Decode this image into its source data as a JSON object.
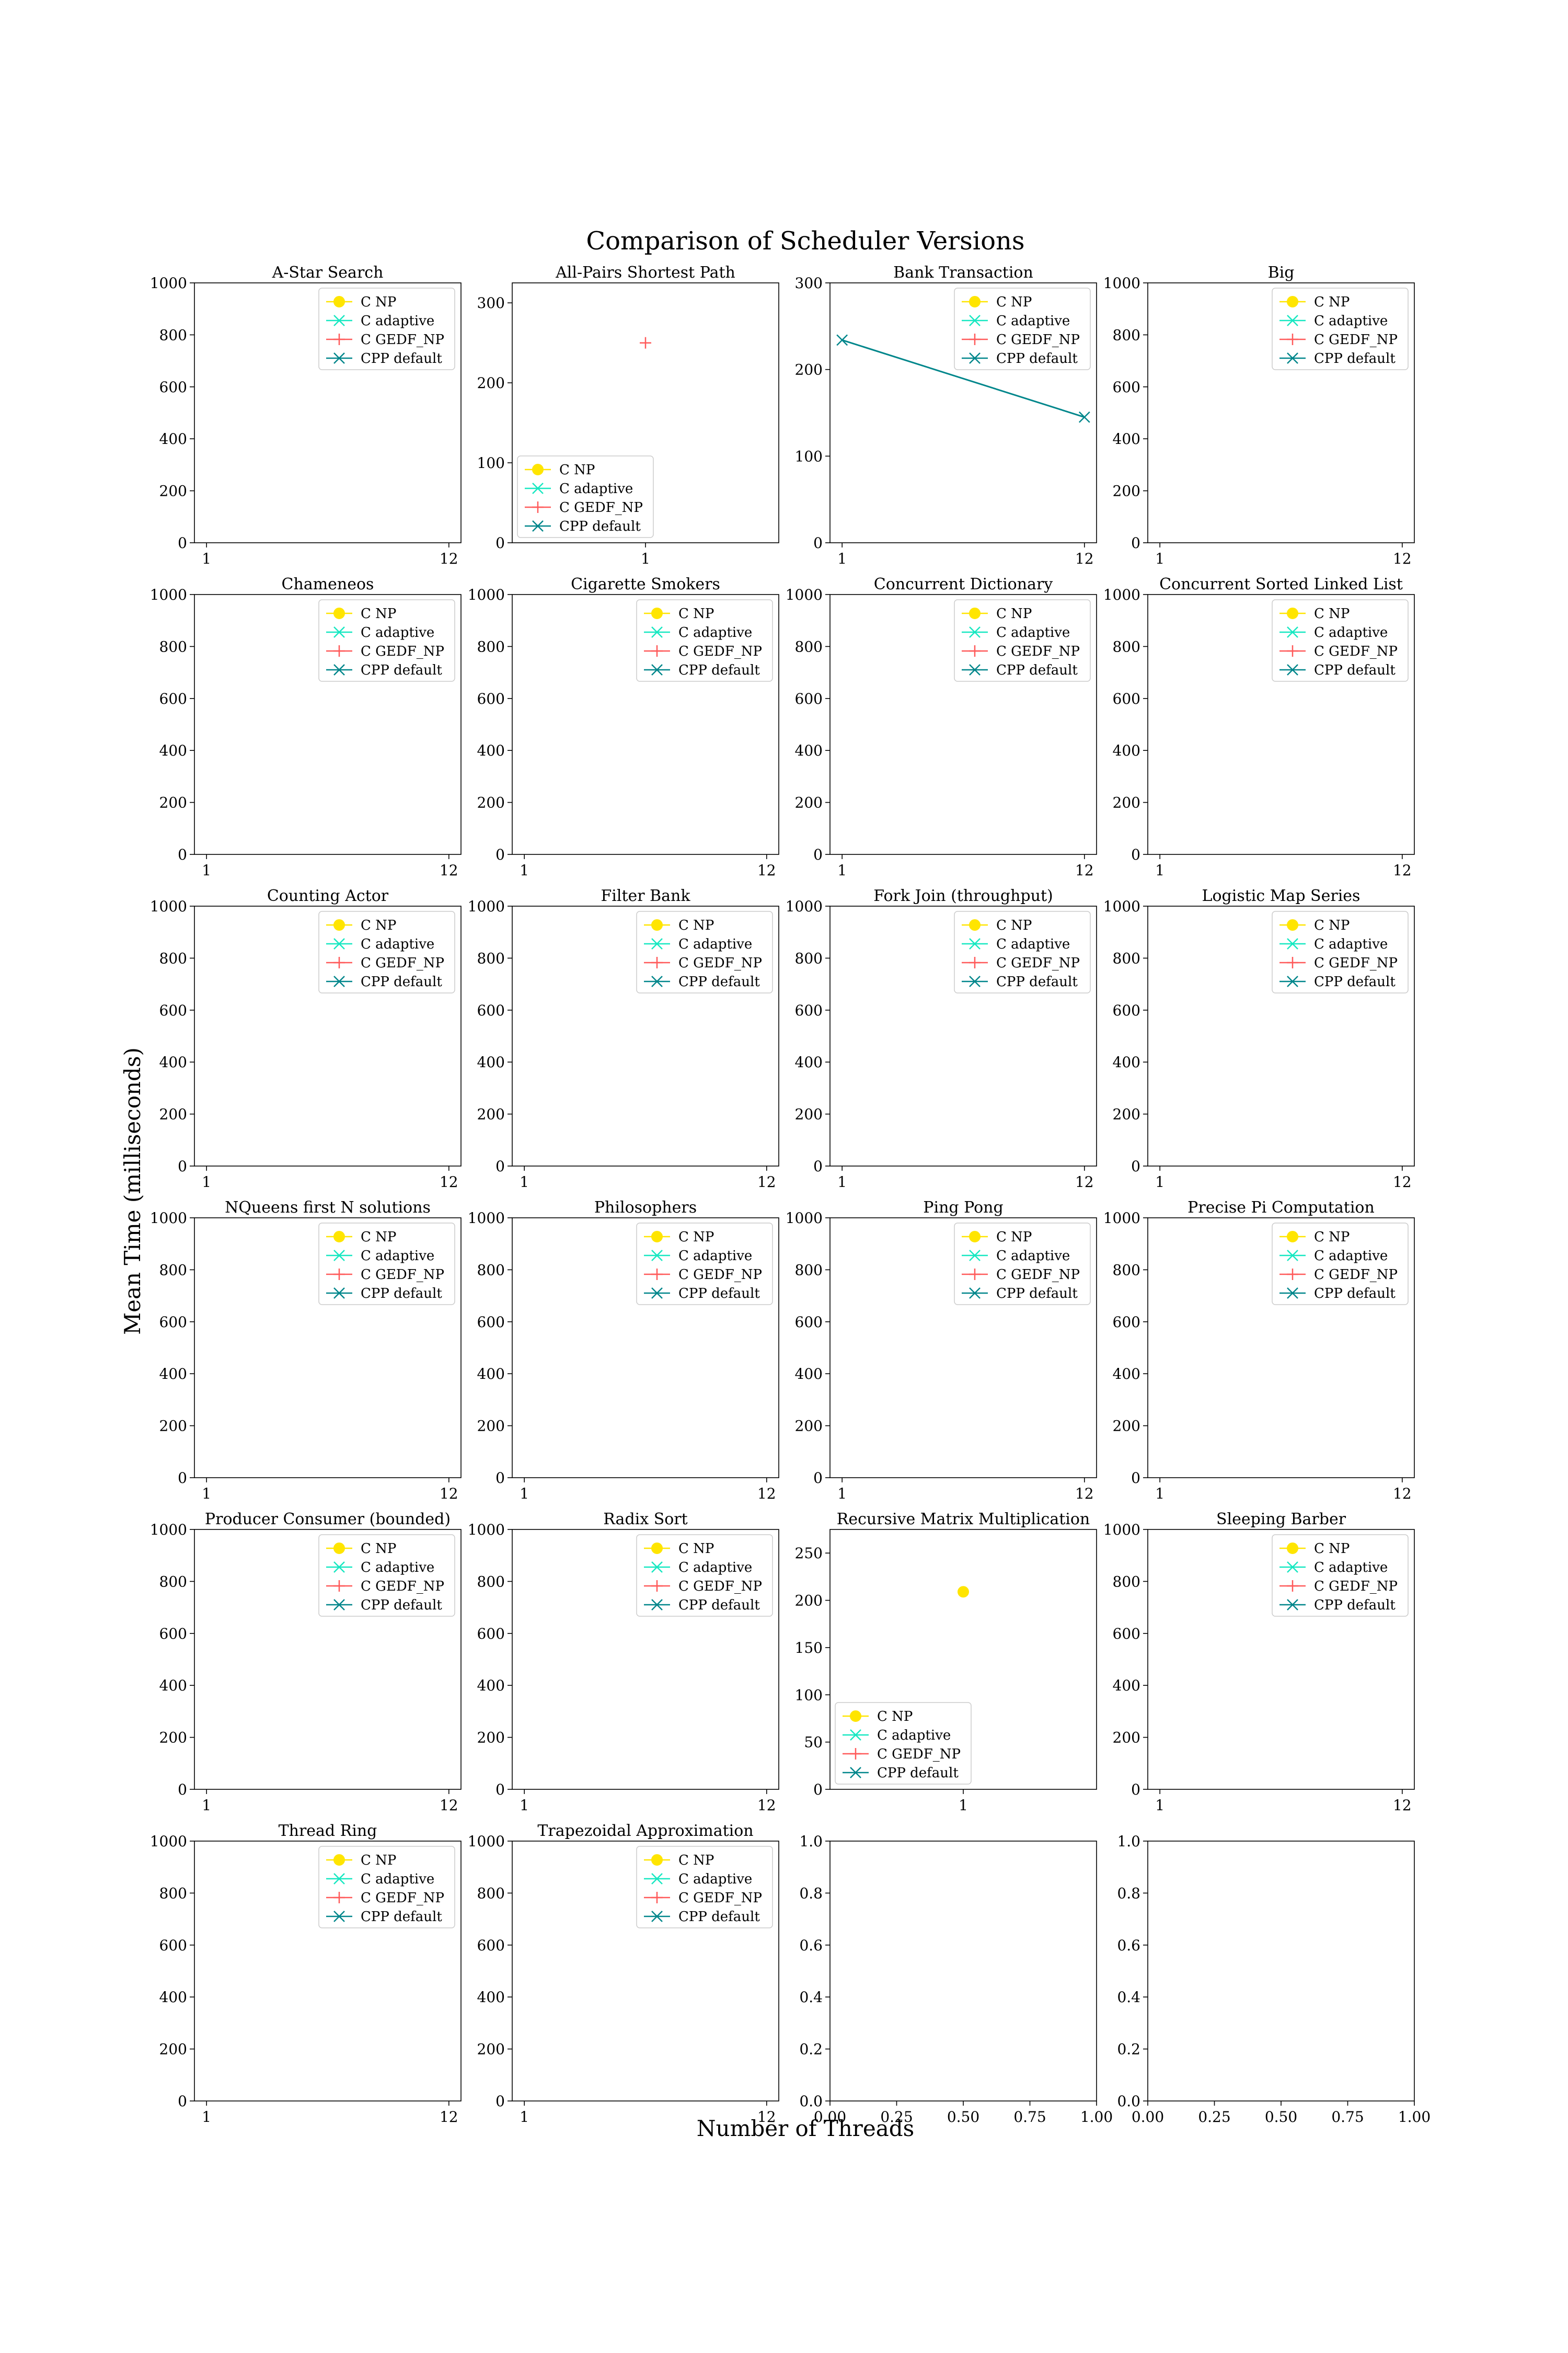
{
  "figure": {
    "title": "Comparison of Scheduler Versions",
    "xlabel": "Number of Threads",
    "ylabel": "Mean Time (milliseconds)"
  },
  "legend_labels": [
    "C NP",
    "C adaptive",
    "C GEDF_NP",
    "CPP default"
  ],
  "series_styles": [
    {
      "name": "C NP",
      "color": "#ffe500",
      "marker": "circle"
    },
    {
      "name": "C adaptive",
      "color": "#17e8c1",
      "marker": "x"
    },
    {
      "name": "C GEDF_NP",
      "color": "#ff5a5a",
      "marker": "plus"
    },
    {
      "name": "CPP default",
      "color": "#00868b",
      "marker": "x"
    }
  ],
  "chart_data": [
    {
      "type": "line",
      "title": "A-Star Search",
      "xticks": [
        "1",
        "12"
      ],
      "ylim": [
        0,
        1000
      ],
      "yticks": [
        0,
        200,
        400,
        600,
        800,
        1000
      ],
      "legend": "top-right",
      "series": [
        {
          "name": "C NP",
          "x": [],
          "y": []
        },
        {
          "name": "C adaptive",
          "x": [],
          "y": []
        },
        {
          "name": "C GEDF_NP",
          "x": [],
          "y": []
        },
        {
          "name": "CPP default",
          "x": [],
          "y": []
        }
      ]
    },
    {
      "type": "line",
      "title": "All-Pairs Shortest Path",
      "xticks": [
        "1"
      ],
      "ylim": [
        0,
        325
      ],
      "yticks": [
        0,
        100,
        200,
        300
      ],
      "legend": "bottom-left",
      "series": [
        {
          "name": "C NP",
          "x": [],
          "y": []
        },
        {
          "name": "C adaptive",
          "x": [],
          "y": []
        },
        {
          "name": "C GEDF_NP",
          "x": [
            1
          ],
          "y": [
            250
          ]
        },
        {
          "name": "CPP default",
          "x": [],
          "y": []
        }
      ]
    },
    {
      "type": "line",
      "title": "Bank Transaction",
      "xticks": [
        "1",
        "12"
      ],
      "ylim": [
        0,
        300
      ],
      "yticks": [
        0,
        100,
        200,
        300
      ],
      "legend": "top-right",
      "series": [
        {
          "name": "C NP",
          "x": [],
          "y": []
        },
        {
          "name": "C adaptive",
          "x": [],
          "y": []
        },
        {
          "name": "C GEDF_NP",
          "x": [],
          "y": []
        },
        {
          "name": "CPP default",
          "x": [
            1,
            12
          ],
          "y": [
            234,
            145
          ]
        }
      ]
    },
    {
      "type": "line",
      "title": "Big",
      "xticks": [
        "1",
        "12"
      ],
      "ylim": [
        0,
        1000
      ],
      "yticks": [
        0,
        200,
        400,
        600,
        800,
        1000
      ],
      "legend": "top-right",
      "series": [
        {
          "name": "C NP",
          "x": [],
          "y": []
        },
        {
          "name": "C adaptive",
          "x": [],
          "y": []
        },
        {
          "name": "C GEDF_NP",
          "x": [],
          "y": []
        },
        {
          "name": "CPP default",
          "x": [],
          "y": []
        }
      ]
    },
    {
      "type": "line",
      "title": "Chameneos",
      "xticks": [
        "1",
        "12"
      ],
      "ylim": [
        0,
        1000
      ],
      "yticks": [
        0,
        200,
        400,
        600,
        800,
        1000
      ],
      "legend": "top-right",
      "series": [
        {
          "name": "C NP",
          "x": [],
          "y": []
        },
        {
          "name": "C adaptive",
          "x": [],
          "y": []
        },
        {
          "name": "C GEDF_NP",
          "x": [],
          "y": []
        },
        {
          "name": "CPP default",
          "x": [],
          "y": []
        }
      ]
    },
    {
      "type": "line",
      "title": "Cigarette Smokers",
      "xticks": [
        "1",
        "12"
      ],
      "ylim": [
        0,
        1000
      ],
      "yticks": [
        0,
        200,
        400,
        600,
        800,
        1000
      ],
      "legend": "top-right",
      "series": [
        {
          "name": "C NP",
          "x": [],
          "y": []
        },
        {
          "name": "C adaptive",
          "x": [],
          "y": []
        },
        {
          "name": "C GEDF_NP",
          "x": [],
          "y": []
        },
        {
          "name": "CPP default",
          "x": [],
          "y": []
        }
      ]
    },
    {
      "type": "line",
      "title": "Concurrent Dictionary",
      "xticks": [
        "1",
        "12"
      ],
      "ylim": [
        0,
        1000
      ],
      "yticks": [
        0,
        200,
        400,
        600,
        800,
        1000
      ],
      "legend": "top-right",
      "series": [
        {
          "name": "C NP",
          "x": [],
          "y": []
        },
        {
          "name": "C adaptive",
          "x": [],
          "y": []
        },
        {
          "name": "C GEDF_NP",
          "x": [],
          "y": []
        },
        {
          "name": "CPP default",
          "x": [],
          "y": []
        }
      ]
    },
    {
      "type": "line",
      "title": "Concurrent Sorted Linked List",
      "xticks": [
        "1",
        "12"
      ],
      "ylim": [
        0,
        1000
      ],
      "yticks": [
        0,
        200,
        400,
        600,
        800,
        1000
      ],
      "legend": "top-right",
      "series": [
        {
          "name": "C NP",
          "x": [],
          "y": []
        },
        {
          "name": "C adaptive",
          "x": [],
          "y": []
        },
        {
          "name": "C GEDF_NP",
          "x": [],
          "y": []
        },
        {
          "name": "CPP default",
          "x": [],
          "y": []
        }
      ]
    },
    {
      "type": "line",
      "title": "Counting Actor",
      "xticks": [
        "1",
        "12"
      ],
      "ylim": [
        0,
        1000
      ],
      "yticks": [
        0,
        200,
        400,
        600,
        800,
        1000
      ],
      "legend": "top-right",
      "series": [
        {
          "name": "C NP",
          "x": [],
          "y": []
        },
        {
          "name": "C adaptive",
          "x": [],
          "y": []
        },
        {
          "name": "C GEDF_NP",
          "x": [],
          "y": []
        },
        {
          "name": "CPP default",
          "x": [],
          "y": []
        }
      ]
    },
    {
      "type": "line",
      "title": "Filter Bank",
      "xticks": [
        "1",
        "12"
      ],
      "ylim": [
        0,
        1000
      ],
      "yticks": [
        0,
        200,
        400,
        600,
        800,
        1000
      ],
      "legend": "top-right",
      "series": [
        {
          "name": "C NP",
          "x": [],
          "y": []
        },
        {
          "name": "C adaptive",
          "x": [],
          "y": []
        },
        {
          "name": "C GEDF_NP",
          "x": [],
          "y": []
        },
        {
          "name": "CPP default",
          "x": [],
          "y": []
        }
      ]
    },
    {
      "type": "line",
      "title": "Fork Join (throughput)",
      "xticks": [
        "1",
        "12"
      ],
      "ylim": [
        0,
        1000
      ],
      "yticks": [
        0,
        200,
        400,
        600,
        800,
        1000
      ],
      "legend": "top-right",
      "series": [
        {
          "name": "C NP",
          "x": [],
          "y": []
        },
        {
          "name": "C adaptive",
          "x": [],
          "y": []
        },
        {
          "name": "C GEDF_NP",
          "x": [],
          "y": []
        },
        {
          "name": "CPP default",
          "x": [],
          "y": []
        }
      ]
    },
    {
      "type": "line",
      "title": "Logistic Map Series",
      "xticks": [
        "1",
        "12"
      ],
      "ylim": [
        0,
        1000
      ],
      "yticks": [
        0,
        200,
        400,
        600,
        800,
        1000
      ],
      "legend": "top-right",
      "series": [
        {
          "name": "C NP",
          "x": [],
          "y": []
        },
        {
          "name": "C adaptive",
          "x": [],
          "y": []
        },
        {
          "name": "C GEDF_NP",
          "x": [],
          "y": []
        },
        {
          "name": "CPP default",
          "x": [],
          "y": []
        }
      ]
    },
    {
      "type": "line",
      "title": "NQueens first N solutions",
      "xticks": [
        "1",
        "12"
      ],
      "ylim": [
        0,
        1000
      ],
      "yticks": [
        0,
        200,
        400,
        600,
        800,
        1000
      ],
      "legend": "top-right",
      "series": [
        {
          "name": "C NP",
          "x": [],
          "y": []
        },
        {
          "name": "C adaptive",
          "x": [],
          "y": []
        },
        {
          "name": "C GEDF_NP",
          "x": [],
          "y": []
        },
        {
          "name": "CPP default",
          "x": [],
          "y": []
        }
      ]
    },
    {
      "type": "line",
      "title": "Philosophers",
      "xticks": [
        "1",
        "12"
      ],
      "ylim": [
        0,
        1000
      ],
      "yticks": [
        0,
        200,
        400,
        600,
        800,
        1000
      ],
      "legend": "top-right",
      "series": [
        {
          "name": "C NP",
          "x": [],
          "y": []
        },
        {
          "name": "C adaptive",
          "x": [],
          "y": []
        },
        {
          "name": "C GEDF_NP",
          "x": [],
          "y": []
        },
        {
          "name": "CPP default",
          "x": [],
          "y": []
        }
      ]
    },
    {
      "type": "line",
      "title": "Ping Pong",
      "xticks": [
        "1",
        "12"
      ],
      "ylim": [
        0,
        1000
      ],
      "yticks": [
        0,
        200,
        400,
        600,
        800,
        1000
      ],
      "legend": "top-right",
      "series": [
        {
          "name": "C NP",
          "x": [],
          "y": []
        },
        {
          "name": "C adaptive",
          "x": [],
          "y": []
        },
        {
          "name": "C GEDF_NP",
          "x": [],
          "y": []
        },
        {
          "name": "CPP default",
          "x": [],
          "y": []
        }
      ]
    },
    {
      "type": "line",
      "title": "Precise Pi Computation",
      "xticks": [
        "1",
        "12"
      ],
      "ylim": [
        0,
        1000
      ],
      "yticks": [
        0,
        200,
        400,
        600,
        800,
        1000
      ],
      "legend": "top-right",
      "series": [
        {
          "name": "C NP",
          "x": [],
          "y": []
        },
        {
          "name": "C adaptive",
          "x": [],
          "y": []
        },
        {
          "name": "C GEDF_NP",
          "x": [],
          "y": []
        },
        {
          "name": "CPP default",
          "x": [],
          "y": []
        }
      ]
    },
    {
      "type": "line",
      "title": "Producer Consumer (bounded)",
      "xticks": [
        "1",
        "12"
      ],
      "ylim": [
        0,
        1000
      ],
      "yticks": [
        0,
        200,
        400,
        600,
        800,
        1000
      ],
      "legend": "top-right",
      "series": [
        {
          "name": "C NP",
          "x": [],
          "y": []
        },
        {
          "name": "C adaptive",
          "x": [],
          "y": []
        },
        {
          "name": "C GEDF_NP",
          "x": [],
          "y": []
        },
        {
          "name": "CPP default",
          "x": [],
          "y": []
        }
      ]
    },
    {
      "type": "line",
      "title": "Radix Sort",
      "xticks": [
        "1",
        "12"
      ],
      "ylim": [
        0,
        1000
      ],
      "yticks": [
        0,
        200,
        400,
        600,
        800,
        1000
      ],
      "legend": "top-right",
      "series": [
        {
          "name": "C NP",
          "x": [],
          "y": []
        },
        {
          "name": "C adaptive",
          "x": [],
          "y": []
        },
        {
          "name": "C GEDF_NP",
          "x": [],
          "y": []
        },
        {
          "name": "CPP default",
          "x": [],
          "y": []
        }
      ]
    },
    {
      "type": "line",
      "title": "Recursive Matrix Multiplication",
      "xticks": [
        "1"
      ],
      "ylim": [
        0,
        275
      ],
      "yticks": [
        0,
        50,
        100,
        150,
        200,
        250
      ],
      "legend": "bottom-left",
      "series": [
        {
          "name": "C NP",
          "x": [
            1
          ],
          "y": [
            209
          ]
        },
        {
          "name": "C adaptive",
          "x": [],
          "y": []
        },
        {
          "name": "C GEDF_NP",
          "x": [],
          "y": []
        },
        {
          "name": "CPP default",
          "x": [],
          "y": []
        }
      ]
    },
    {
      "type": "line",
      "title": "Sleeping Barber",
      "xticks": [
        "1",
        "12"
      ],
      "ylim": [
        0,
        1000
      ],
      "yticks": [
        0,
        200,
        400,
        600,
        800,
        1000
      ],
      "legend": "top-right",
      "series": [
        {
          "name": "C NP",
          "x": [],
          "y": []
        },
        {
          "name": "C adaptive",
          "x": [],
          "y": []
        },
        {
          "name": "C GEDF_NP",
          "x": [],
          "y": []
        },
        {
          "name": "CPP default",
          "x": [],
          "y": []
        }
      ]
    },
    {
      "type": "line",
      "title": "Thread Ring",
      "xticks": [
        "1",
        "12"
      ],
      "ylim": [
        0,
        1000
      ],
      "yticks": [
        0,
        200,
        400,
        600,
        800,
        1000
      ],
      "legend": "top-right",
      "series": [
        {
          "name": "C NP",
          "x": [],
          "y": []
        },
        {
          "name": "C adaptive",
          "x": [],
          "y": []
        },
        {
          "name": "C GEDF_NP",
          "x": [],
          "y": []
        },
        {
          "name": "CPP default",
          "x": [],
          "y": []
        }
      ]
    },
    {
      "type": "line",
      "title": "Trapezoidal Approximation",
      "xticks": [
        "1",
        "12"
      ],
      "ylim": [
        0,
        1000
      ],
      "yticks": [
        0,
        200,
        400,
        600,
        800,
        1000
      ],
      "legend": "top-right",
      "series": [
        {
          "name": "C NP",
          "x": [],
          "y": []
        },
        {
          "name": "C adaptive",
          "x": [],
          "y": []
        },
        {
          "name": "C GEDF_NP",
          "x": [],
          "y": []
        },
        {
          "name": "CPP default",
          "x": [],
          "y": []
        }
      ]
    },
    {
      "type": "line",
      "title": "",
      "xticks": [
        "0.00",
        "0.25",
        "0.50",
        "0.75",
        "1.00"
      ],
      "ylim": [
        0,
        1
      ],
      "yticks": [
        "0.0",
        "0.2",
        "0.4",
        "0.6",
        "0.8",
        "1.0"
      ],
      "legend": "none",
      "series": []
    },
    {
      "type": "line",
      "title": "",
      "xticks": [
        "0.00",
        "0.25",
        "0.50",
        "0.75",
        "1.00"
      ],
      "ylim": [
        0,
        1
      ],
      "yticks": [
        "0.0",
        "0.2",
        "0.4",
        "0.6",
        "0.8",
        "1.0"
      ],
      "legend": "none",
      "series": []
    }
  ]
}
